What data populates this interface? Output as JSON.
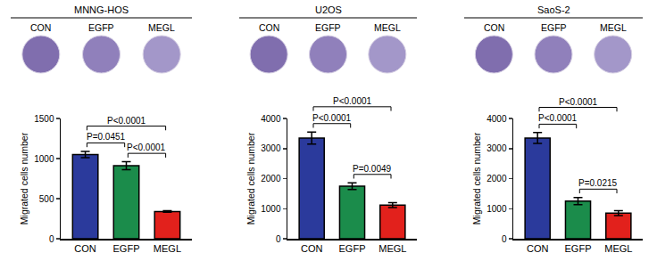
{
  "chart_data": [
    {
      "type": "bar",
      "title": "MNNG-HOS",
      "categories": [
        "CON",
        "EGFP",
        "MEGL"
      ],
      "values": [
        1050,
        910,
        340
      ],
      "errors": [
        40,
        50,
        10
      ],
      "colors": [
        "#2b3a9c",
        "#1b8c4b",
        "#e2211c"
      ],
      "y_label": "Migrated cells number",
      "ylim": [
        0,
        1500
      ],
      "yticks": [
        0,
        500,
        1000,
        1500
      ],
      "comparisons": [
        {
          "from": "CON",
          "to": "EGFP",
          "label": "P=0.0451"
        },
        {
          "from": "EGFP",
          "to": "MEGL",
          "label": "P<0.0001"
        },
        {
          "from": "CON",
          "to": "MEGL",
          "label": "P<0.0001"
        }
      ]
    },
    {
      "type": "bar",
      "title": "U2OS",
      "categories": [
        "CON",
        "EGFP",
        "MEGL"
      ],
      "values": [
        3350,
        1750,
        1120
      ],
      "errors": [
        200,
        110,
        80
      ],
      "colors": [
        "#2b3a9c",
        "#1b8c4b",
        "#e2211c"
      ],
      "y_label": "Migrated cells number",
      "ylim": [
        0,
        4000
      ],
      "yticks": [
        0,
        1000,
        2000,
        3000,
        4000
      ],
      "comparisons": [
        {
          "from": "CON",
          "to": "EGFP",
          "label": "P<0.0001"
        },
        {
          "from": "EGFP",
          "to": "MEGL",
          "label": "P=0.0049"
        },
        {
          "from": "CON",
          "to": "MEGL",
          "label": "P<0.0001"
        }
      ]
    },
    {
      "type": "bar",
      "title": "SaoS-2",
      "categories": [
        "CON",
        "EGFP",
        "MEGL"
      ],
      "values": [
        3350,
        1250,
        850
      ],
      "errors": [
        180,
        120,
        80
      ],
      "colors": [
        "#2b3a9c",
        "#1b8c4b",
        "#e2211c"
      ],
      "y_label": "Migrated cells number",
      "ylim": [
        0,
        4000
      ],
      "yticks": [
        0,
        1000,
        2000,
        3000,
        4000
      ],
      "comparisons": [
        {
          "from": "CON",
          "to": "EGFP",
          "label": "P<0.0001"
        },
        {
          "from": "EGFP",
          "to": "MEGL",
          "label": "P=0.0215"
        },
        {
          "from": "CON",
          "to": "MEGL",
          "label": "P<0.0001"
        }
      ]
    }
  ]
}
